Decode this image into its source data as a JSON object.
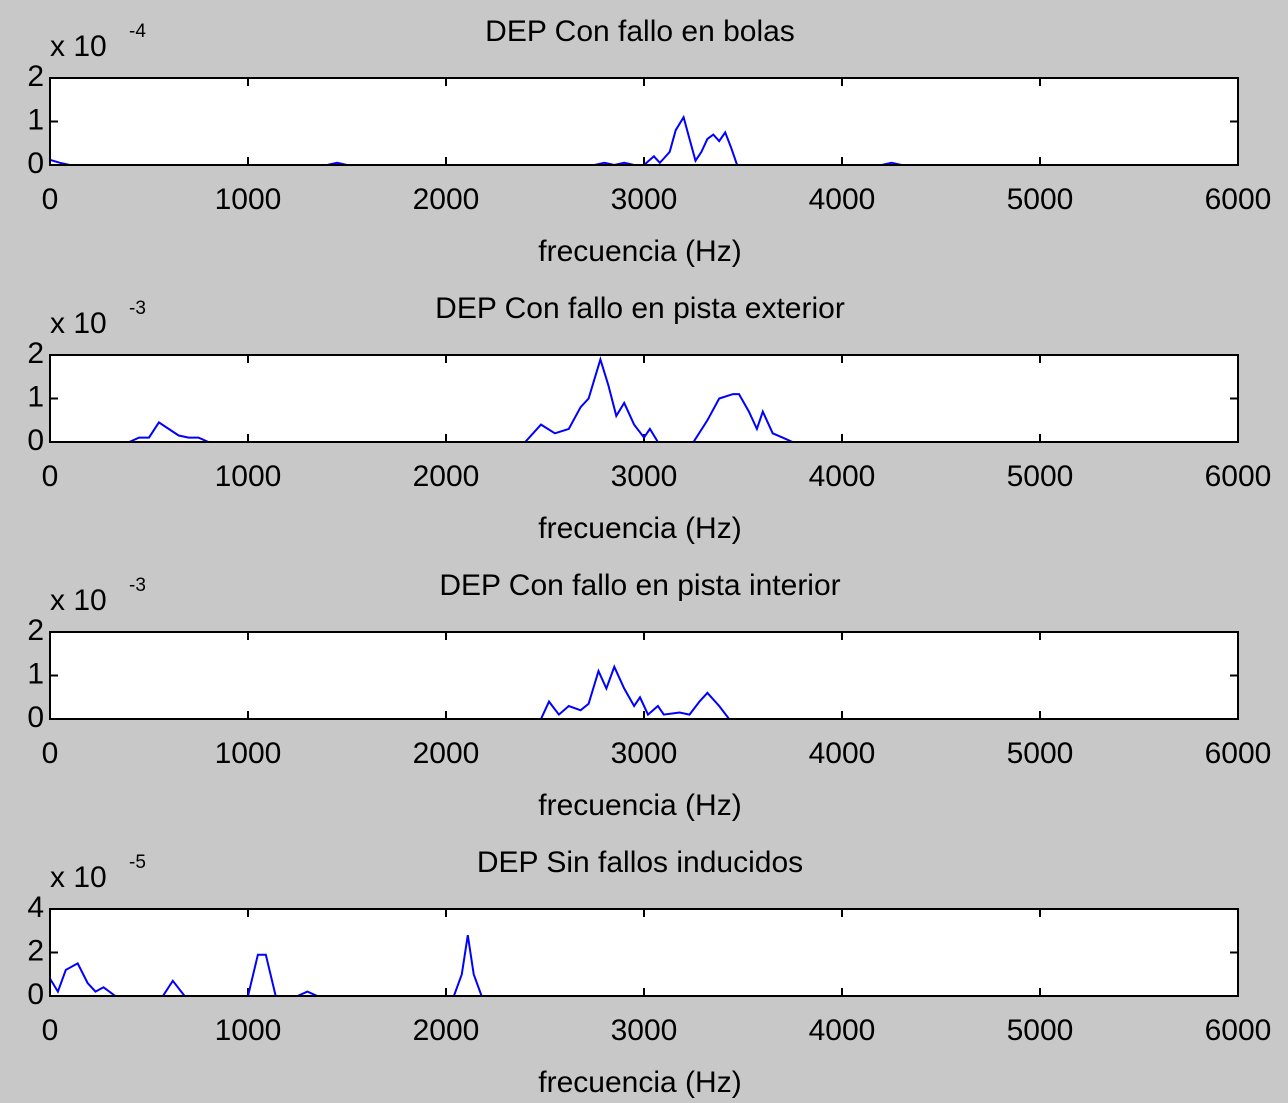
{
  "chart_data": [
    {
      "type": "line",
      "title": "DEP Con fallo en bolas",
      "xlabel": "frecuencia (Hz)",
      "y_multiplier": {
        "base": "x 10",
        "exponent": "-4"
      },
      "color": "#0000ff",
      "xlim": [
        0,
        6000
      ],
      "xticks": [
        0,
        1000,
        2000,
        3000,
        4000,
        5000,
        6000
      ],
      "ylim": [
        0,
        2
      ],
      "yticks": [
        0,
        1,
        2
      ],
      "x": [
        0,
        50,
        100,
        1400,
        1450,
        1500,
        2750,
        2800,
        2850,
        2900,
        2950,
        3000,
        3050,
        3080,
        3100,
        3130,
        3160,
        3200,
        3230,
        3260,
        3290,
        3320,
        3350,
        3380,
        3410,
        3440,
        3470,
        3500,
        4200,
        4250,
        4300,
        6000
      ],
      "values": [
        0.12,
        0.05,
        0,
        0,
        0.05,
        0,
        0,
        0.05,
        0,
        0.05,
        0,
        0,
        0.2,
        0.05,
        0.15,
        0.3,
        0.8,
        1.1,
        0.6,
        0.1,
        0.3,
        0.6,
        0.7,
        0.55,
        0.75,
        0.4,
        0,
        0,
        0,
        0.05,
        0,
        0
      ]
    },
    {
      "type": "line",
      "title": "DEP Con fallo en pista exterior",
      "xlabel": "frecuencia (Hz)",
      "y_multiplier": {
        "base": "x 10",
        "exponent": "-3"
      },
      "color": "#0000ff",
      "xlim": [
        0,
        6000
      ],
      "xticks": [
        0,
        1000,
        2000,
        3000,
        4000,
        5000,
        6000
      ],
      "ylim": [
        0,
        2
      ],
      "yticks": [
        0,
        1,
        2
      ],
      "x": [
        0,
        400,
        450,
        500,
        550,
        650,
        700,
        750,
        800,
        2400,
        2480,
        2550,
        2620,
        2680,
        2720,
        2780,
        2820,
        2860,
        2900,
        2950,
        3000,
        3030,
        3070,
        3250,
        3320,
        3380,
        3450,
        3480,
        3530,
        3570,
        3600,
        3650,
        3700,
        3750,
        6000
      ],
      "values": [
        0,
        0,
        0.1,
        0.1,
        0.45,
        0.15,
        0.1,
        0.1,
        0,
        0,
        0.4,
        0.2,
        0.3,
        0.8,
        1.0,
        1.9,
        1.3,
        0.6,
        0.9,
        0.4,
        0.1,
        0.3,
        0,
        0,
        0.5,
        1.0,
        1.1,
        1.1,
        0.7,
        0.3,
        0.7,
        0.2,
        0.1,
        0,
        0
      ]
    },
    {
      "type": "line",
      "title": "DEP Con fallo en pista interior",
      "xlabel": "frecuencia (Hz)",
      "y_multiplier": {
        "base": "x 10",
        "exponent": "-3"
      },
      "color": "#0000ff",
      "xlim": [
        0,
        6000
      ],
      "xticks": [
        0,
        1000,
        2000,
        3000,
        4000,
        5000,
        6000
      ],
      "ylim": [
        0,
        2
      ],
      "yticks": [
        0,
        1,
        2
      ],
      "x": [
        0,
        2480,
        2520,
        2570,
        2620,
        2680,
        2720,
        2770,
        2810,
        2850,
        2900,
        2950,
        2980,
        3020,
        3070,
        3100,
        3180,
        3230,
        3280,
        3320,
        3380,
        3430,
        6000
      ],
      "values": [
        0,
        0,
        0.4,
        0.1,
        0.3,
        0.2,
        0.35,
        1.1,
        0.7,
        1.2,
        0.7,
        0.3,
        0.5,
        0.1,
        0.3,
        0.1,
        0.15,
        0.1,
        0.4,
        0.6,
        0.3,
        0,
        0
      ]
    },
    {
      "type": "line",
      "title": "DEP Sin fallos inducidos",
      "xlabel": "frecuencia (Hz)",
      "y_multiplier": {
        "base": "x 10",
        "exponent": "-5"
      },
      "color": "#0000ff",
      "xlim": [
        0,
        6000
      ],
      "xticks": [
        0,
        1000,
        2000,
        3000,
        4000,
        5000,
        6000
      ],
      "ylim": [
        0,
        4
      ],
      "yticks": [
        0,
        2,
        4
      ],
      "x": [
        0,
        40,
        80,
        140,
        190,
        230,
        270,
        330,
        570,
        620,
        680,
        1000,
        1050,
        1090,
        1140,
        1250,
        1300,
        1350,
        2040,
        2080,
        2110,
        2140,
        2180,
        6000
      ],
      "values": [
        0.8,
        0.2,
        1.2,
        1.5,
        0.6,
        0.2,
        0.4,
        0,
        0,
        0.7,
        0,
        0,
        1.9,
        1.9,
        0,
        0,
        0.2,
        0,
        0,
        1.0,
        2.8,
        1.0,
        0,
        0
      ]
    }
  ]
}
